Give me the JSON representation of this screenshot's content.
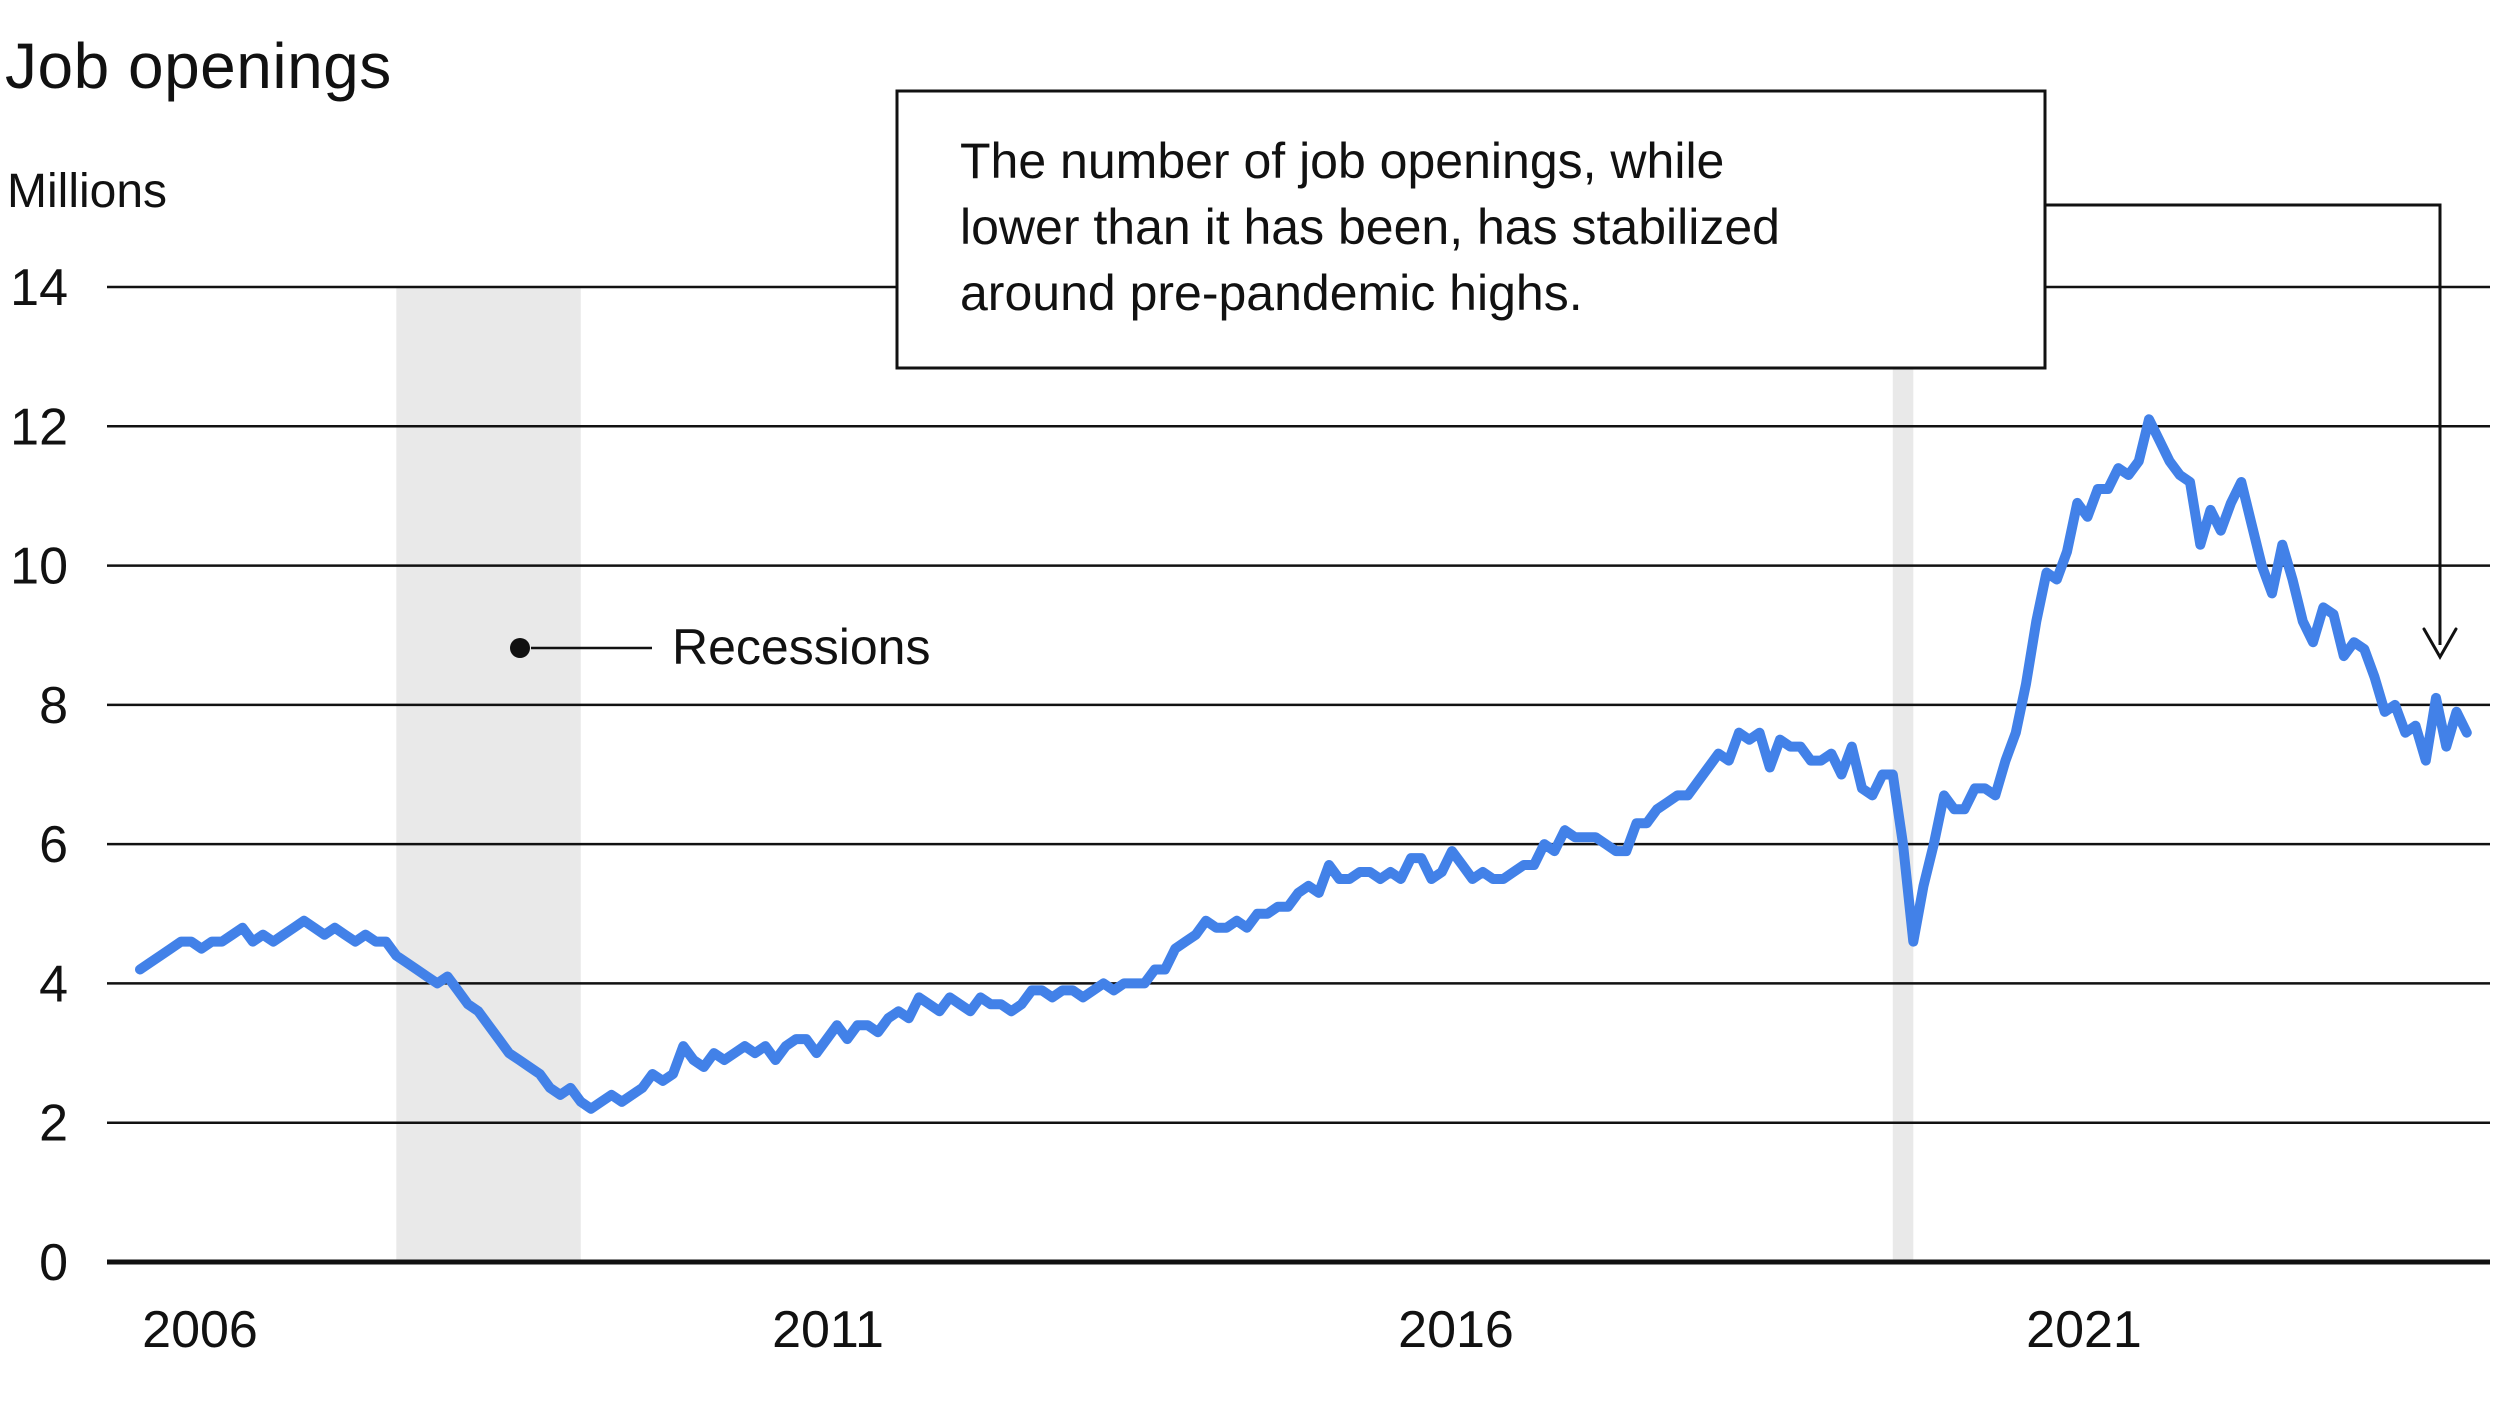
{
  "title": "Job openings",
  "unit_label": "Millions",
  "legend": {
    "recessions_label": "Recessions"
  },
  "annotation": {
    "lines": [
      "The number of job openings, while",
      "lower than it has been, has stabilized",
      "around pre-pandemic highs."
    ]
  },
  "colors": {
    "line": "#4281e8",
    "recession_band": "#e9e9e9",
    "axis": "#111111",
    "background": "#ffffff"
  },
  "chart_data": {
    "type": "line",
    "title": "Job openings",
    "ylabel": "Millions",
    "ylim": [
      0,
      14
    ],
    "yticks": [
      0,
      2,
      4,
      6,
      8,
      10,
      12,
      14
    ],
    "xticks": [
      "2006",
      "2011",
      "2016",
      "2021"
    ],
    "grid": "horizontal",
    "legend_position": "in-plot annotation",
    "recession_bands": [
      {
        "start": "2007-12",
        "end": "2009-06"
      },
      {
        "start": "2020-02",
        "end": "2020-04"
      }
    ],
    "series": [
      {
        "name": "Job openings",
        "unit": "millions",
        "frequency": "monthly",
        "start": "2005-11",
        "end": "2024-10",
        "values": [
          4.2,
          4.3,
          4.4,
          4.5,
          4.6,
          4.6,
          4.5,
          4.6,
          4.6,
          4.7,
          4.8,
          4.6,
          4.7,
          4.6,
          4.7,
          4.8,
          4.9,
          4.8,
          4.7,
          4.8,
          4.7,
          4.6,
          4.7,
          4.6,
          4.6,
          4.4,
          4.3,
          4.2,
          4.1,
          4.0,
          4.1,
          3.9,
          3.7,
          3.6,
          3.4,
          3.2,
          3.0,
          2.9,
          2.8,
          2.7,
          2.5,
          2.4,
          2.5,
          2.3,
          2.2,
          2.3,
          2.4,
          2.3,
          2.4,
          2.5,
          2.7,
          2.6,
          2.7,
          3.1,
          2.9,
          2.8,
          3.0,
          2.9,
          3.0,
          3.1,
          3.0,
          3.1,
          2.9,
          3.1,
          3.2,
          3.2,
          3.0,
          3.2,
          3.4,
          3.2,
          3.4,
          3.4,
          3.3,
          3.5,
          3.6,
          3.5,
          3.8,
          3.7,
          3.6,
          3.8,
          3.7,
          3.6,
          3.8,
          3.7,
          3.7,
          3.6,
          3.7,
          3.9,
          3.9,
          3.8,
          3.9,
          3.9,
          3.8,
          3.9,
          4.0,
          3.9,
          4.0,
          4.0,
          4.0,
          4.2,
          4.2,
          4.5,
          4.6,
          4.7,
          4.9,
          4.8,
          4.8,
          4.9,
          4.8,
          5.0,
          5.0,
          5.1,
          5.1,
          5.3,
          5.4,
          5.3,
          5.7,
          5.5,
          5.5,
          5.6,
          5.6,
          5.5,
          5.6,
          5.5,
          5.8,
          5.8,
          5.5,
          5.6,
          5.9,
          5.7,
          5.5,
          5.6,
          5.5,
          5.5,
          5.6,
          5.7,
          5.7,
          6.0,
          5.9,
          6.2,
          6.1,
          6.1,
          6.1,
          6.0,
          5.9,
          5.9,
          6.3,
          6.3,
          6.5,
          6.6,
          6.7,
          6.7,
          6.9,
          7.1,
          7.3,
          7.2,
          7.6,
          7.5,
          7.6,
          7.1,
          7.5,
          7.4,
          7.4,
          7.2,
          7.2,
          7.3,
          7.0,
          7.4,
          6.8,
          6.7,
          7.0,
          7.0,
          6.0,
          4.6,
          5.4,
          6.0,
          6.7,
          6.5,
          6.5,
          6.8,
          6.8,
          6.7,
          7.2,
          7.6,
          8.3,
          9.2,
          9.9,
          9.8,
          10.2,
          10.9,
          10.7,
          11.1,
          11.1,
          11.4,
          11.3,
          11.5,
          12.1,
          11.8,
          11.5,
          11.3,
          11.2,
          10.3,
          10.8,
          10.5,
          10.9,
          11.2,
          10.6,
          10.0,
          9.6,
          10.3,
          9.8,
          9.2,
          8.9,
          9.4,
          9.3,
          8.7,
          8.9,
          8.8,
          8.4,
          7.9,
          8.0,
          7.6,
          7.7,
          7.2,
          8.1,
          7.4,
          7.9,
          7.6
        ]
      }
    ],
    "annotations": [
      "The number of job openings, while lower than it has been, has stabilized around pre-pandemic highs.",
      "Recessions"
    ]
  }
}
